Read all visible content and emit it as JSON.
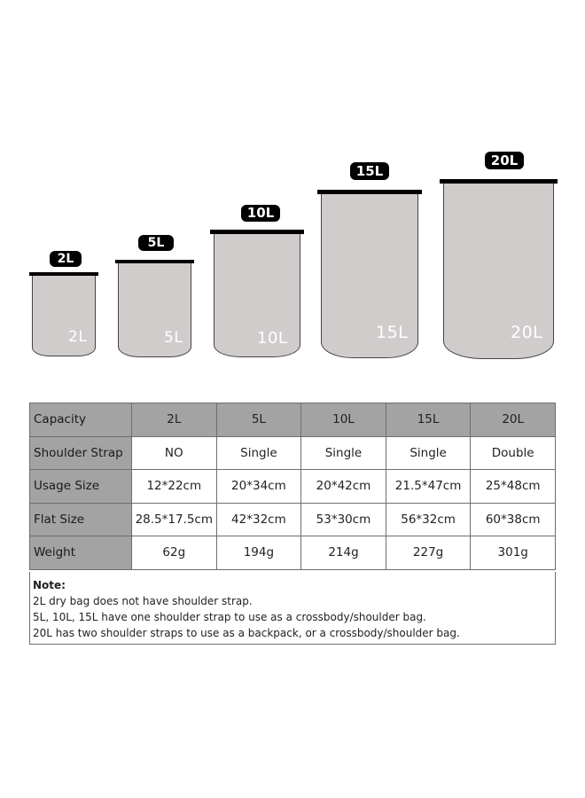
{
  "bags": [
    {
      "badge": "2L",
      "label": "2L"
    },
    {
      "badge": "5L",
      "label": "5L"
    },
    {
      "badge": "10L",
      "label": "10L"
    },
    {
      "badge": "15L",
      "label": "15L"
    },
    {
      "badge": "20L",
      "label": "20L"
    }
  ],
  "table": {
    "headers": [
      "Capacity",
      "2L",
      "5L",
      "10L",
      "15L",
      "20L"
    ],
    "rows": [
      {
        "label": "Shoulder Strap",
        "cells": [
          "NO",
          "Single",
          "Single",
          "Single",
          "Double"
        ]
      },
      {
        "label": "Usage Size",
        "cells": [
          "12*22cm",
          "20*34cm",
          "20*42cm",
          "21.5*47cm",
          "25*48cm"
        ]
      },
      {
        "label": "Flat Size",
        "cells": [
          "28.5*17.5cm",
          "42*32cm",
          "53*30cm",
          "56*32cm",
          "60*38cm"
        ]
      },
      {
        "label": "Weight",
        "cells": [
          "62g",
          "194g",
          "214g",
          "227g",
          "301g"
        ]
      }
    ]
  },
  "note": {
    "title": "Note:",
    "lines": [
      "2L dry bag does not have shoulder strap.",
      "5L, 10L, 15L have one shoulder strap to use as a crossbody/shoulder bag.",
      "20L has two shoulder straps to use as a backpack, or a crossbody/shoulder bag."
    ]
  },
  "colors": {
    "bag_fill": "#d1cccc",
    "header_fill": "#a3a3a3",
    "badge": "#000000"
  }
}
